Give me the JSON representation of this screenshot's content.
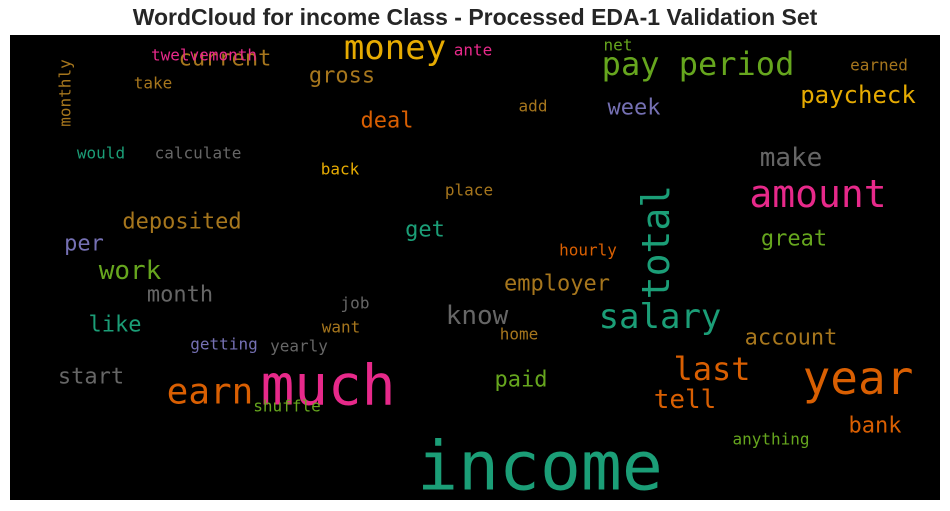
{
  "chart_data": {
    "type": "wordcloud",
    "title": "WordCloud for income Class - Processed EDA-1 Validation Set",
    "background": "#000000",
    "words": [
      {
        "text": "income",
        "color": "#1b9e77"
      },
      {
        "text": "much",
        "color": "#e7298a"
      },
      {
        "text": "year",
        "color": "#d95f02"
      },
      {
        "text": "salary",
        "color": "#1b9e77"
      },
      {
        "text": "amount",
        "color": "#e7298a"
      },
      {
        "text": "total",
        "color": "#1b9e77"
      },
      {
        "text": "money",
        "color": "#e6ab02"
      },
      {
        "text": "pay period",
        "color": "#66a61e"
      },
      {
        "text": "earn",
        "color": "#d95f02"
      },
      {
        "text": "last",
        "color": "#d95f02"
      },
      {
        "text": "know",
        "color": "#666666"
      },
      {
        "text": "make",
        "color": "#666666"
      },
      {
        "text": "tell",
        "color": "#d95f02"
      },
      {
        "text": "work",
        "color": "#66a61e"
      },
      {
        "text": "paycheck",
        "color": "#e6ab02"
      },
      {
        "text": "deposited",
        "color": "#a6761d"
      },
      {
        "text": "bank",
        "color": "#d95f02"
      },
      {
        "text": "current",
        "color": "#a6761d"
      },
      {
        "text": "great",
        "color": "#66a61e"
      },
      {
        "text": "month",
        "color": "#666666"
      },
      {
        "text": "gross",
        "color": "#a6761d"
      },
      {
        "text": "employer",
        "color": "#a6761d"
      },
      {
        "text": "start",
        "color": "#666666"
      },
      {
        "text": "week",
        "color": "#7570b3"
      },
      {
        "text": "like",
        "color": "#1b9e77"
      },
      {
        "text": "account",
        "color": "#a6761d"
      },
      {
        "text": "paid",
        "color": "#66a61e"
      },
      {
        "text": "deal",
        "color": "#d95f02"
      },
      {
        "text": "per",
        "color": "#7570b3"
      },
      {
        "text": "get",
        "color": "#1b9e77"
      },
      {
        "text": "anything",
        "color": "#66a61e"
      },
      {
        "text": "calculate",
        "color": "#666666"
      },
      {
        "text": "twelvemonth",
        "color": "#e7298a"
      },
      {
        "text": "hourly",
        "color": "#d95f02"
      },
      {
        "text": "would",
        "color": "#1b9e77"
      },
      {
        "text": "earned",
        "color": "#a6761d"
      },
      {
        "text": "monthly",
        "color": "#a6761d"
      },
      {
        "text": "place",
        "color": "#a6761d"
      },
      {
        "text": "getting",
        "color": "#7570b3"
      },
      {
        "text": "yearly",
        "color": "#666666"
      },
      {
        "text": "shuffle",
        "color": "#66a61e"
      },
      {
        "text": "take",
        "color": "#a6761d"
      },
      {
        "text": "back",
        "color": "#e6ab02"
      },
      {
        "text": "add",
        "color": "#a6761d"
      },
      {
        "text": "ante",
        "color": "#e7298a"
      },
      {
        "text": "net",
        "color": "#66a61e"
      },
      {
        "text": "job",
        "color": "#666666"
      },
      {
        "text": "want",
        "color": "#a6761d"
      },
      {
        "text": "home",
        "color": "#a6761d"
      }
    ]
  }
}
